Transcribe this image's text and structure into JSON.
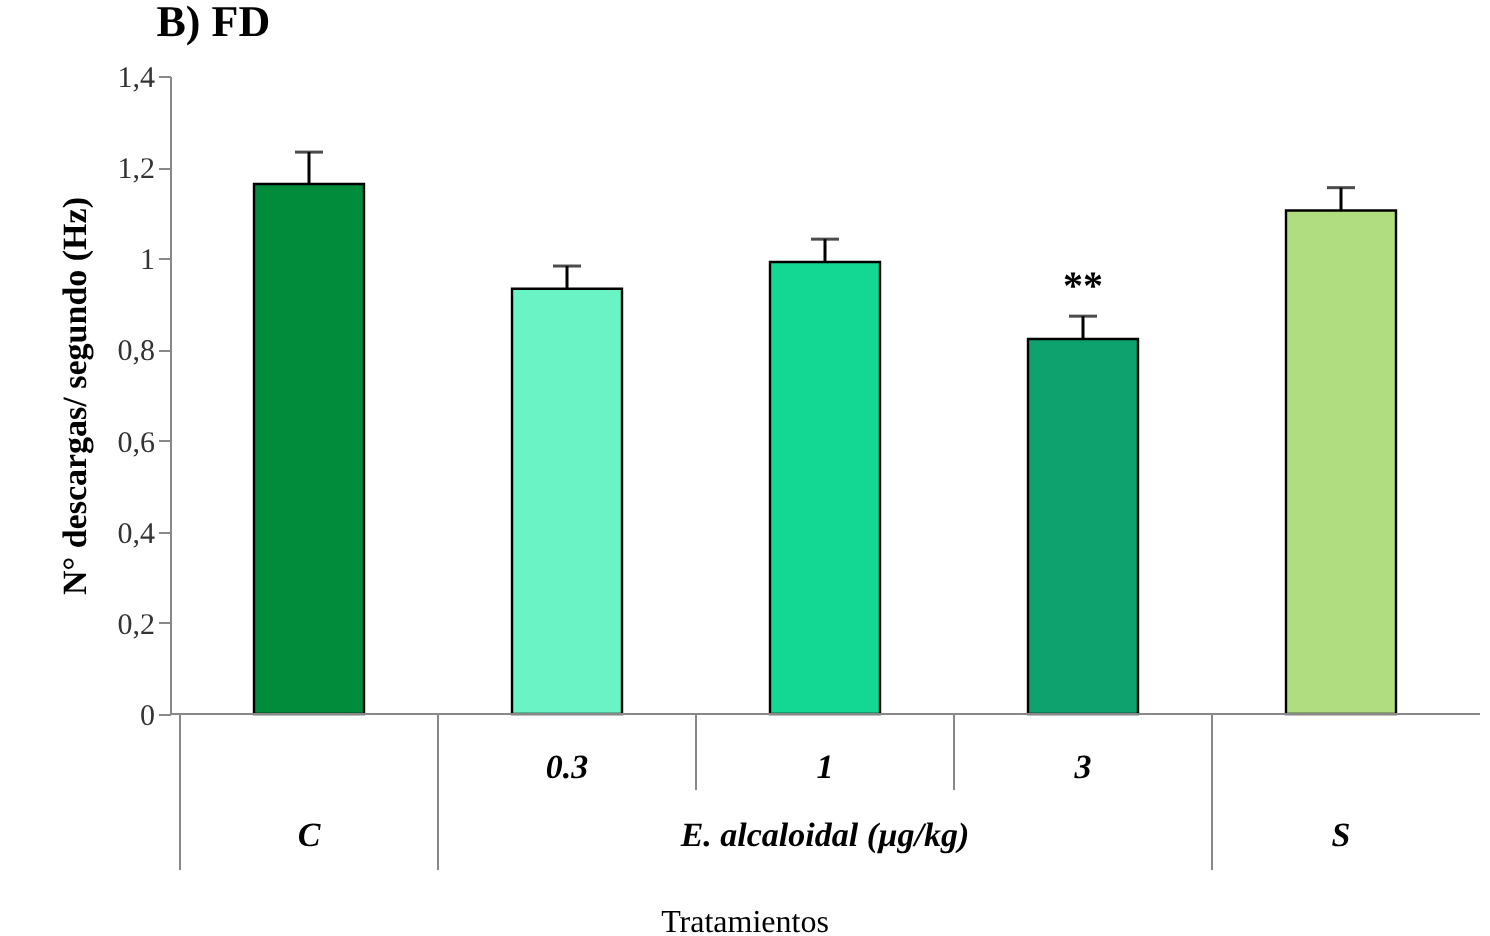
{
  "chart_data": {
    "type": "bar",
    "title": "B) FD",
    "xlabel": "Tratamientos",
    "ylabel": "N° descargas/  segundo  (Hz)",
    "categories": [
      "C",
      "0.3",
      "1",
      "3",
      "S"
    ],
    "values": [
      1.163,
      0.933,
      0.992,
      0.823,
      1.105
    ],
    "errors": [
      0.07,
      0.05,
      0.05,
      0.05,
      0.05
    ],
    "colors": [
      "#008c3a",
      "#6af3c4",
      "#13d893",
      "#0ea36e",
      "#b0dd80"
    ],
    "ylim": [
      0,
      1.4
    ],
    "yticks": [
      0,
      {
        "value": 0.2,
        "label": "0,2"
      },
      {
        "value": 0.4,
        "label": "0,4"
      },
      {
        "value": 0.6,
        "label": "0,6"
      },
      {
        "value": 0.8,
        "label": "0,8"
      },
      1,
      {
        "value": 1.2,
        "label": "1,2"
      },
      {
        "value": 1.4,
        "label": "1,4"
      }
    ],
    "annotations": [
      "E. alcaloidal (µg/kg)",
      {
        "text": "**",
        "x": "3",
        "y": 0.875
      }
    ],
    "grid": false
  }
}
